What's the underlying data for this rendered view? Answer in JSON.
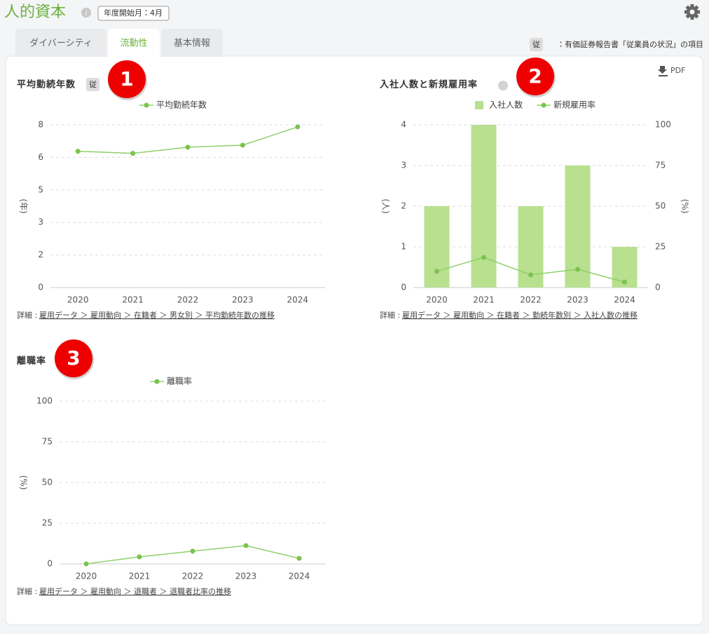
{
  "header": {
    "title": "人的資本",
    "fiscal_badge": "年度開始月：4月"
  },
  "tabs": [
    "ダイバーシティ",
    "流動性",
    "基本情報"
  ],
  "active_tab": 1,
  "note": {
    "badge": "従",
    "text": "：有価証券報告書「従業員の状況」の項目"
  },
  "pdf_button": "PDF",
  "chart_data": [
    {
      "type": "line",
      "badge_number": 1,
      "title": "平均勤続年数",
      "badge": "従",
      "y_label": "(年)",
      "categories": [
        "2020",
        "2021",
        "2022",
        "2023",
        "2024"
      ],
      "series": [
        {
          "name": "平均勤続年数",
          "color": "#8fd16a",
          "values": [
            6.7,
            6.6,
            6.9,
            7.0,
            7.9
          ]
        }
      ],
      "ylim": [
        0,
        8
      ],
      "yticks": [
        0,
        {
          "value": 1.6,
          "label": "2"
        },
        {
          "value": 3.2,
          "label": "3"
        },
        {
          "value": 4.8,
          "label": "5"
        },
        {
          "value": 6.4,
          "label": "6"
        },
        8
      ],
      "grid": true,
      "detail_label": "詳細 :",
      "detail_link": "雇用データ ＞ 雇用動向 ＞ 在籍者 ＞ 男女別 ＞ 平均勤続年数の推移"
    },
    {
      "type": "bar",
      "badge_number": 2,
      "title": "入社人数と新規雇用率",
      "y_label": "(人)",
      "y2_label": "(%)",
      "categories": [
        "2020",
        "2021",
        "2022",
        "2023",
        "2024"
      ],
      "series": [
        {
          "name": "入社人数",
          "color": "#b8e08f",
          "values": [
            2,
            4,
            2,
            3,
            1
          ]
        },
        {
          "name": "新規雇用率",
          "color": "#8fd16a",
          "type": "line",
          "axis": "y2",
          "values": [
            10,
            18.5,
            7.8,
            11.2,
            3.4
          ]
        }
      ],
      "ylim": [
        0,
        4
      ],
      "yticks": [
        0,
        1,
        2,
        3,
        4
      ],
      "y2lim": [
        0,
        100
      ],
      "y2ticks": [
        0,
        25,
        50,
        75,
        100
      ],
      "grid": true,
      "detail_label": "詳細 :",
      "detail_link": "雇用データ ＞ 雇用動向 ＞ 在籍者 ＞ 勤続年数別 ＞ 入社人数の推移"
    },
    {
      "type": "line",
      "badge_number": 3,
      "title": "離職率",
      "y_label": "(%)",
      "categories": [
        "2020",
        "2021",
        "2022",
        "2023",
        "2024"
      ],
      "series": [
        {
          "name": "離職率",
          "color": "#8fd16a",
          "values": [
            0,
            4.3,
            7.8,
            11.2,
            3.4
          ]
        }
      ],
      "ylim": [
        0,
        100
      ],
      "yticks": [
        0,
        25,
        50,
        75,
        100
      ],
      "grid": true,
      "detail_label": "詳細 :",
      "detail_link": "雇用データ ＞ 雇用動向 ＞ 退職者 ＞ 退職者比率の推移"
    }
  ]
}
